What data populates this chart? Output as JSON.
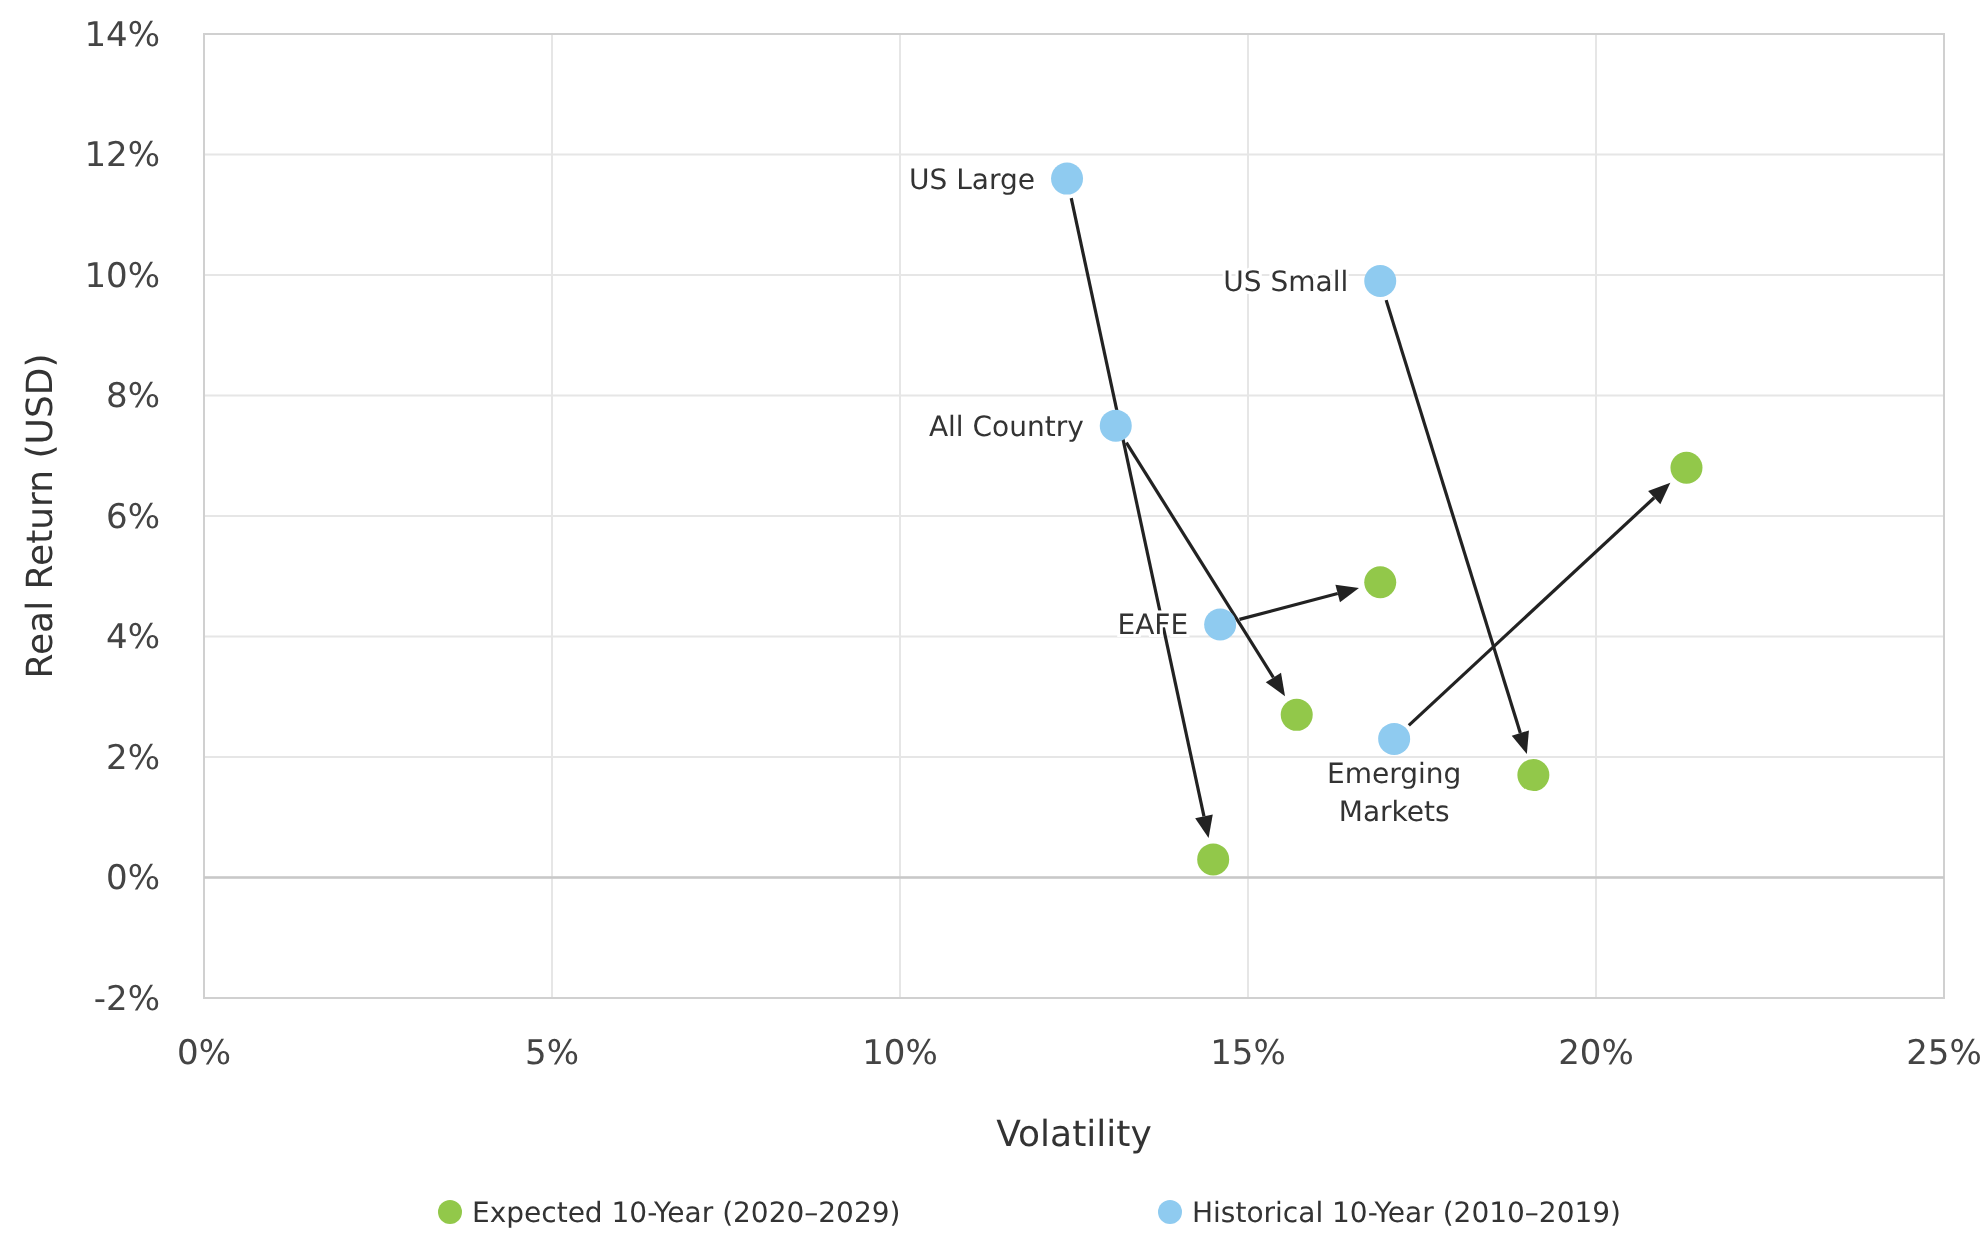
{
  "chart_data": {
    "type": "scatter",
    "xlabel": "Volatility",
    "ylabel": "Real Return (USD)",
    "xlim": [
      0,
      25
    ],
    "xticks": [
      {
        "value": 0,
        "label": "0%"
      },
      {
        "value": 5,
        "label": "5%"
      },
      {
        "value": 10,
        "label": "10%"
      },
      {
        "value": 15,
        "label": "15%"
      },
      {
        "value": 20,
        "label": "20%"
      },
      {
        "value": 25,
        "label": "25%"
      }
    ],
    "ylim": [
      -2,
      14
    ],
    "yticks": [
      {
        "value": -2,
        "label": "-2%"
      },
      {
        "value": 0,
        "label": "0%"
      },
      {
        "value": 2,
        "label": "2%"
      },
      {
        "value": 4,
        "label": "4%"
      },
      {
        "value": 6,
        "label": "6%"
      },
      {
        "value": 8,
        "label": "8%"
      },
      {
        "value": 10,
        "label": "10%"
      },
      {
        "value": 12,
        "label": "12%"
      },
      {
        "value": 14,
        "label": "14%"
      }
    ],
    "series": [
      {
        "name": "Expected 10-Year (2020–2029)",
        "color": "#92c84a",
        "x": [
          14.5,
          19.1,
          15.7,
          16.9,
          21.3
        ],
        "values": [
          0.3,
          1.7,
          2.7,
          4.9,
          6.8
        ]
      },
      {
        "name": "Historical 10-Year (2010–2019)",
        "color": "#8fcbf0",
        "x": [
          12.4,
          16.9,
          13.1,
          14.6,
          17.1
        ],
        "values": [
          11.6,
          9.9,
          7.5,
          4.2,
          2.3
        ]
      }
    ],
    "annotations": [
      {
        "text": "US Large",
        "x": 12.4,
        "y": 11.6
      },
      {
        "text": "US Small",
        "x": 16.9,
        "y": 9.9
      },
      {
        "text": "All Country",
        "x": 13.1,
        "y": 7.5
      },
      {
        "text": "EAFE",
        "x": 14.6,
        "y": 4.2
      },
      {
        "text": "Emerging Markets",
        "x": 17.1,
        "y": 2.3
      }
    ],
    "ref_lines": [
      {
        "axis": "y",
        "value": 0,
        "color": "#c8c8c8"
      }
    ],
    "grid": true,
    "legend": "bottom",
    "marker": "circle"
  }
}
